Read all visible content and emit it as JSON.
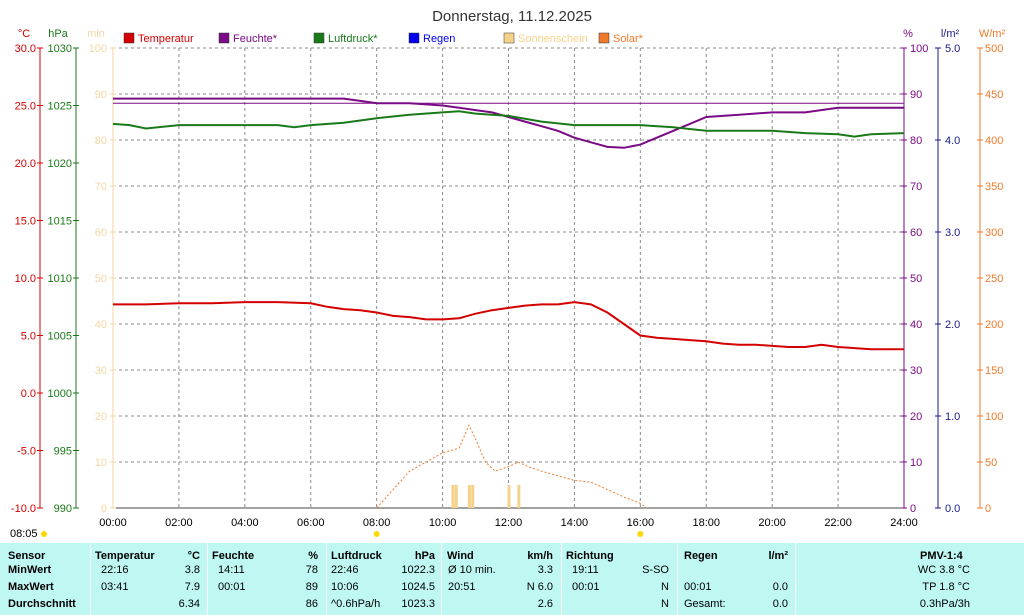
{
  "title": "Donnerstag, 11.12.2025",
  "colors": {
    "temperature": "#d40000",
    "humidity": "#7a0a85",
    "pressure": "#1a7a1a",
    "rain": "#0000ee",
    "sunshine": "#f5d28a",
    "solar": "#f07a2a",
    "minutes_axis": "#f2d7a3",
    "grid": "#8a8a8a",
    "stats_bg": "#bff7f3"
  },
  "legend": [
    {
      "label": "Temperatur",
      "color": "#d40000"
    },
    {
      "label": "Feuchte*",
      "color": "#7a0a85"
    },
    {
      "label": "Luftdruck*",
      "color": "#1a7a1a"
    },
    {
      "label": "Regen",
      "color": "#0000ee"
    },
    {
      "label": "Sonnenschein",
      "color": "#f5d28a"
    },
    {
      "label": "Solar*",
      "color": "#f07a2a"
    }
  ],
  "start_time": "08:05",
  "chart_data": {
    "type": "line",
    "xlabel": "",
    "x_ticks": [
      "00:00",
      "02:00",
      "04:00",
      "06:00",
      "08:00",
      "10:00",
      "12:00",
      "14:00",
      "16:00",
      "18:00",
      "20:00",
      "22:00",
      "24:00"
    ],
    "axes": {
      "temperature": {
        "unit": "°C",
        "ticks": [
          "30.0",
          "25.0",
          "20.0",
          "15.0",
          "10.0",
          "5.0",
          "0.0",
          "-5.0",
          "-10.0"
        ],
        "range": [
          -10,
          30
        ]
      },
      "pressure": {
        "unit": "hPa",
        "ticks": [
          "1030",
          "1025",
          "1020",
          "1015",
          "1010",
          "1005",
          "1000",
          "995",
          "990"
        ],
        "range": [
          990,
          1030
        ]
      },
      "minutes": {
        "unit": "min",
        "ticks": [
          "100",
          "90",
          "80",
          "70",
          "60",
          "50",
          "40",
          "30",
          "20",
          "10",
          "0"
        ],
        "range": [
          0,
          100
        ]
      },
      "humidity": {
        "unit": "%",
        "ticks": [
          "100",
          "90",
          "80",
          "70",
          "60",
          "50",
          "40",
          "30",
          "20",
          "10",
          "0"
        ],
        "range": [
          0,
          100
        ]
      },
      "rain": {
        "unit": "l/m²",
        "ticks": [
          "5.0",
          "4.0",
          "3.0",
          "2.0",
          "1.0",
          "0.0"
        ],
        "range": [
          0,
          5
        ]
      },
      "solar": {
        "unit": "W/m²",
        "ticks": [
          "500",
          "450",
          "400",
          "350",
          "300",
          "250",
          "200",
          "150",
          "100",
          "50",
          "0"
        ],
        "range": [
          0,
          500
        ]
      }
    },
    "series": [
      {
        "name": "Temperatur",
        "axis": "temperature",
        "x": [
          0,
          1,
          2,
          3,
          4,
          5,
          6,
          6.5,
          7,
          7.5,
          8,
          8.5,
          9,
          9.5,
          10,
          10.5,
          11,
          11.5,
          12,
          12.5,
          13,
          13.5,
          14,
          14.5,
          15,
          15.5,
          16,
          16.5,
          17,
          17.5,
          18,
          18.5,
          19,
          19.5,
          20,
          20.5,
          21,
          21.5,
          22,
          22.5,
          23,
          23.5,
          24
        ],
        "y": [
          7.7,
          7.7,
          7.8,
          7.8,
          7.9,
          7.9,
          7.8,
          7.5,
          7.3,
          7.2,
          7.0,
          6.7,
          6.6,
          6.4,
          6.4,
          6.5,
          6.9,
          7.2,
          7.4,
          7.6,
          7.7,
          7.7,
          7.9,
          7.7,
          7.0,
          6.0,
          5.0,
          4.8,
          4.7,
          4.6,
          4.5,
          4.3,
          4.2,
          4.2,
          4.1,
          4.0,
          4.0,
          4.2,
          4.0,
          3.9,
          3.8,
          3.8,
          3.8
        ]
      },
      {
        "name": "Feuchte*",
        "axis": "humidity",
        "x": [
          0,
          1,
          2,
          3,
          4,
          5,
          6,
          7,
          7.5,
          8,
          9,
          10,
          10.5,
          11,
          11.5,
          12,
          12.5,
          13,
          13.5,
          14,
          14.5,
          15,
          15.5,
          16,
          16.5,
          17,
          17.5,
          18,
          19,
          20,
          21,
          22,
          23,
          24
        ],
        "y": [
          89,
          89,
          89,
          89,
          89,
          89,
          89,
          89,
          88.5,
          88,
          88,
          87.5,
          87,
          86.5,
          86,
          85,
          84,
          83,
          82,
          80.5,
          79.5,
          78.5,
          78.3,
          79,
          80.5,
          82,
          83.5,
          85,
          85.5,
          86,
          86,
          87,
          87,
          87
        ]
      },
      {
        "name": "Luftdruck*",
        "axis": "pressure",
        "x": [
          0,
          0.5,
          1,
          2,
          3,
          4,
          5,
          5.5,
          6,
          7,
          8,
          9,
          10,
          10.5,
          11,
          12,
          13,
          14,
          15,
          16,
          17,
          18,
          19,
          20,
          21,
          22,
          22.5,
          23,
          24
        ],
        "y": [
          1023.4,
          1023.3,
          1023.0,
          1023.3,
          1023.3,
          1023.3,
          1023.3,
          1023.1,
          1023.3,
          1023.5,
          1023.9,
          1024.2,
          1024.4,
          1024.5,
          1024.3,
          1024.1,
          1023.6,
          1023.3,
          1023.3,
          1023.3,
          1023.1,
          1022.8,
          1022.8,
          1022.8,
          1022.6,
          1022.5,
          1022.3,
          1022.5,
          1022.6
        ]
      },
      {
        "name": "Solar*",
        "axis": "solar",
        "x": [
          8,
          8.5,
          9,
          9.5,
          10,
          10.5,
          10.8,
          11,
          11.3,
          11.6,
          12,
          12.3,
          12.6,
          13,
          13.5,
          14,
          14.5,
          15,
          15.5,
          16,
          16.2
        ],
        "y": [
          0,
          20,
          40,
          50,
          60,
          65,
          90,
          75,
          50,
          40,
          45,
          50,
          45,
          40,
          35,
          30,
          28,
          20,
          12,
          5,
          0
        ]
      },
      {
        "name": "Sonnenschein",
        "axis": "minutes",
        "x": [
          10.3,
          10.4,
          10.8,
          10.9,
          12.0,
          12.3
        ],
        "y": [
          5,
          5,
          5,
          5,
          5,
          5
        ]
      }
    ]
  },
  "stats": {
    "headers": {
      "sensor": "Sensor",
      "temp": "Temperatur",
      "temp_unit": "°C",
      "hum": "Feuchte",
      "hum_unit": "%",
      "press": "Luftdruck",
      "press_unit": "hPa",
      "wind": "Wind",
      "wind_unit": "km/h",
      "dir": "Richtung",
      "rain": "Regen",
      "rain_unit": "l/m²",
      "pmv": "PMV-1:4"
    },
    "row_labels": [
      "MinWert",
      "MaxWert",
      "Durchschnitt"
    ],
    "temp": [
      [
        "22:16",
        "3.8"
      ],
      [
        "03:41",
        "7.9"
      ],
      [
        "",
        "6.34"
      ]
    ],
    "hum": [
      [
        "14:11",
        "78"
      ],
      [
        "00:01",
        "89"
      ],
      [
        "",
        "86"
      ]
    ],
    "press": [
      [
        "22:46",
        "1022.3"
      ],
      [
        "10:06",
        "1024.5"
      ],
      [
        "^0.6hPa/h",
        "1023.3"
      ]
    ],
    "wind": [
      [
        "Ø 10 min.",
        "3.3"
      ],
      [
        "20:51",
        "N 6.0"
      ],
      [
        "",
        "2.6"
      ]
    ],
    "dir": [
      [
        "19:11",
        "S-SO"
      ],
      [
        "00:01",
        "N"
      ],
      [
        "",
        "N"
      ]
    ],
    "rain": [
      [
        "",
        ""
      ],
      [
        "00:01",
        "0.0"
      ],
      [
        "Gesamt:",
        "0.0"
      ]
    ],
    "pmv": [
      "WC 3.8 °C",
      "TP 1.8 °C",
      "0.3hPa/3h"
    ]
  }
}
